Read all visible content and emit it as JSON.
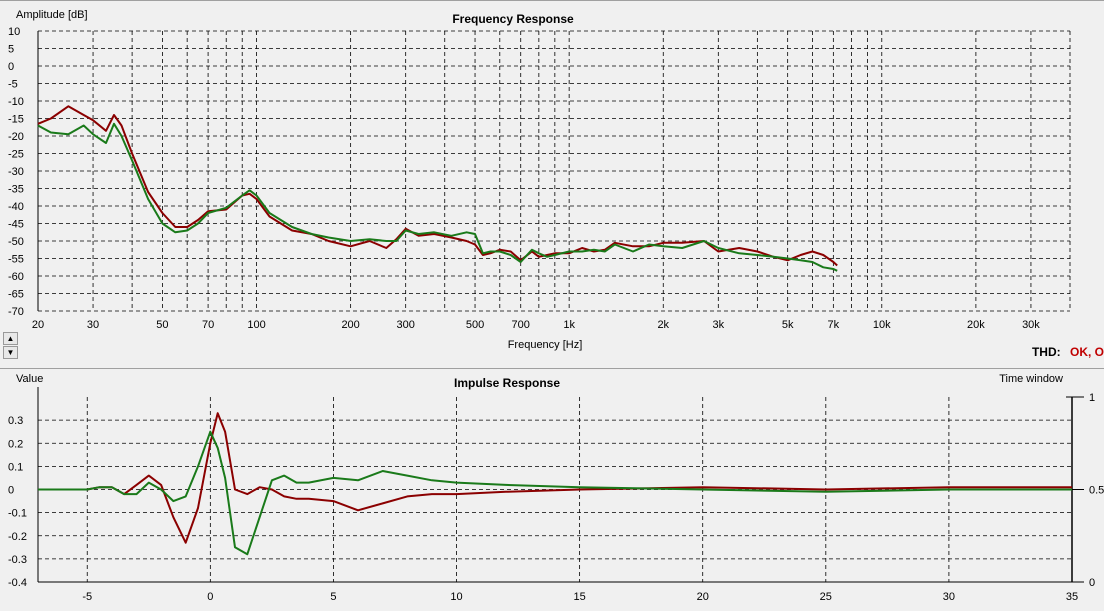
{
  "colors": {
    "series_red": "#8b0000",
    "series_green": "#1a7a1a",
    "thd_ok": "#c00000"
  },
  "thd": {
    "label": "THD:",
    "value": "OK, O"
  },
  "controls": {
    "up_glyph": "▲",
    "down_glyph": "▼"
  },
  "chart_data": [
    {
      "type": "line",
      "title": "Frequency Response",
      "xlabel": "Frequency [Hz]",
      "ylabel": "Amplitude [dB]",
      "xscale": "log",
      "xlim": [
        20,
        40000
      ],
      "ylim": [
        -70,
        10
      ],
      "grid": true,
      "x_ticks": [
        {
          "v": 20,
          "label": "20"
        },
        {
          "v": 30,
          "label": "30"
        },
        {
          "v": 50,
          "label": "50"
        },
        {
          "v": 70,
          "label": "70"
        },
        {
          "v": 100,
          "label": "100"
        },
        {
          "v": 200,
          "label": "200"
        },
        {
          "v": 300,
          "label": "300"
        },
        {
          "v": 500,
          "label": "500"
        },
        {
          "v": 700,
          "label": "700"
        },
        {
          "v": 1000,
          "label": "1k"
        },
        {
          "v": 2000,
          "label": "2k"
        },
        {
          "v": 3000,
          "label": "3k"
        },
        {
          "v": 5000,
          "label": "5k"
        },
        {
          "v": 7000,
          "label": "7k"
        },
        {
          "v": 10000,
          "label": "10k"
        },
        {
          "v": 20000,
          "label": "20k"
        },
        {
          "v": 30000,
          "label": "30k"
        }
      ],
      "y_ticks": [
        10,
        5,
        0,
        -5,
        -10,
        -15,
        -20,
        -25,
        -30,
        -35,
        -40,
        -45,
        -50,
        -55,
        -60,
        -65,
        -70
      ],
      "series": [
        {
          "color": "#8b0000",
          "x": [
            20,
            22,
            25,
            28,
            30,
            33,
            35,
            37,
            40,
            45,
            50,
            55,
            60,
            65,
            70,
            80,
            90,
            95,
            100,
            110,
            130,
            150,
            170,
            200,
            230,
            260,
            280,
            300,
            330,
            370,
            420,
            470,
            500,
            530,
            560,
            600,
            650,
            700,
            760,
            800,
            850,
            900,
            1000,
            1100,
            1200,
            1300,
            1400,
            1600,
            1800,
            2000,
            2300,
            2700,
            3000,
            3500,
            4000,
            4500,
            5000,
            5500,
            6000,
            6500,
            7000,
            7200
          ],
          "y": [
            -16.5,
            -15,
            -11.5,
            -14,
            -15.5,
            -18.5,
            -14,
            -17,
            -25,
            -36,
            -42,
            -46,
            -46,
            -44,
            -41.5,
            -41,
            -37,
            -36.5,
            -38,
            -43,
            -47,
            -48,
            -50,
            -51.5,
            -50,
            -52,
            -49.5,
            -46.5,
            -48.5,
            -48,
            -49,
            -50,
            -51,
            -54,
            -53.5,
            -52.5,
            -53,
            -55.5,
            -53,
            -54.5,
            -54,
            -53.5,
            -53.5,
            -52,
            -53,
            -52.5,
            -50.5,
            -51.5,
            -51.5,
            -50.5,
            -50.5,
            -50,
            -53,
            -52,
            -53,
            -54.5,
            -55.5,
            -54,
            -53,
            -54,
            -56,
            -57
          ]
        },
        {
          "color": "#1a7a1a",
          "x": [
            20,
            22,
            25,
            28,
            30,
            33,
            35,
            37,
            40,
            45,
            50,
            55,
            60,
            65,
            70,
            80,
            90,
            95,
            100,
            110,
            130,
            150,
            170,
            200,
            230,
            260,
            280,
            300,
            330,
            370,
            420,
            470,
            500,
            530,
            560,
            600,
            650,
            700,
            760,
            800,
            850,
            900,
            1000,
            1100,
            1200,
            1300,
            1400,
            1600,
            1800,
            2000,
            2300,
            2700,
            3000,
            3500,
            4000,
            4500,
            5000,
            5500,
            6000,
            6500,
            7000,
            7200
          ],
          "y": [
            -17,
            -19,
            -19.5,
            -17,
            -19.5,
            -22,
            -16.5,
            -20,
            -27,
            -38,
            -45,
            -47.5,
            -47,
            -45,
            -42,
            -40.5,
            -37,
            -35.5,
            -37,
            -42,
            -46,
            -48,
            -49,
            -50,
            -49.5,
            -50,
            -50,
            -47,
            -48,
            -47.5,
            -48.5,
            -47.5,
            -48,
            -53.5,
            -53,
            -53,
            -54,
            -56,
            -52.5,
            -53.5,
            -54.5,
            -54,
            -53,
            -53,
            -52.5,
            -53,
            -51,
            -53,
            -51,
            -51.5,
            -52,
            -50,
            -52,
            -53.5,
            -54,
            -54.5,
            -55,
            -55.5,
            -56,
            -57.5,
            -58,
            -58.5
          ]
        }
      ]
    },
    {
      "type": "line",
      "title": "Impulse Response",
      "xlabel": "",
      "ylabel": "Value",
      "y2label": "Time window",
      "xlim": [
        -7,
        35
      ],
      "ylim": [
        -0.4,
        0.4
      ],
      "y2_ticks": [
        {
          "v": 1,
          "label": "1"
        },
        {
          "v": 0.5,
          "label": "0.5"
        },
        {
          "v": 0,
          "label": "0"
        }
      ],
      "grid": true,
      "x_ticks": [
        -5,
        0,
        5,
        10,
        15,
        20,
        25,
        30,
        35
      ],
      "y_ticks": [
        {
          "v": 0.3,
          "label": "0.3"
        },
        {
          "v": 0.2,
          "label": "0.2"
        },
        {
          "v": 0.1,
          "label": "0.1"
        },
        {
          "v": 0,
          "label": "0"
        },
        {
          "v": -0.1,
          "label": "-0.1"
        },
        {
          "v": -0.2,
          "label": "-0.2"
        },
        {
          "v": -0.3,
          "label": "-0.3"
        },
        {
          "v": -0.4,
          "label": "-0.4"
        }
      ],
      "series": [
        {
          "color": "#8b0000",
          "x": [
            -7,
            -5,
            -4.5,
            -4,
            -3.5,
            -3,
            -2.5,
            -2,
            -1.5,
            -1,
            -0.5,
            0,
            0.3,
            0.6,
            1,
            1.5,
            2,
            2.5,
            3,
            3.5,
            4,
            5,
            6,
            7,
            8,
            9,
            10,
            12,
            15,
            20,
            25,
            30,
            35
          ],
          "y": [
            0,
            0,
            0.01,
            0.01,
            -0.02,
            0.02,
            0.06,
            0.02,
            -0.12,
            -0.23,
            -0.08,
            0.2,
            0.33,
            0.25,
            0,
            -0.02,
            0.01,
            0,
            -0.03,
            -0.04,
            -0.04,
            -0.05,
            -0.09,
            -0.06,
            -0.03,
            -0.02,
            -0.02,
            -0.01,
            0,
            0.01,
            0,
            0.01,
            0.01
          ]
        },
        {
          "color": "#1a7a1a",
          "x": [
            -7,
            -5,
            -4.5,
            -4,
            -3.5,
            -3,
            -2.5,
            -2,
            -1.5,
            -1,
            -0.5,
            0,
            0.3,
            0.6,
            1,
            1.5,
            2,
            2.5,
            3,
            3.5,
            4,
            5,
            6,
            7,
            8,
            9,
            10,
            12,
            15,
            20,
            25,
            30,
            35
          ],
          "y": [
            0,
            0,
            0.01,
            0.01,
            -0.02,
            -0.02,
            0.03,
            0,
            -0.05,
            -0.03,
            0.1,
            0.25,
            0.18,
            0.05,
            -0.25,
            -0.28,
            -0.12,
            0.04,
            0.06,
            0.03,
            0.03,
            0.05,
            0.04,
            0.08,
            0.06,
            0.04,
            0.03,
            0.02,
            0.01,
            0,
            -0.01,
            0,
            0
          ]
        }
      ]
    }
  ]
}
